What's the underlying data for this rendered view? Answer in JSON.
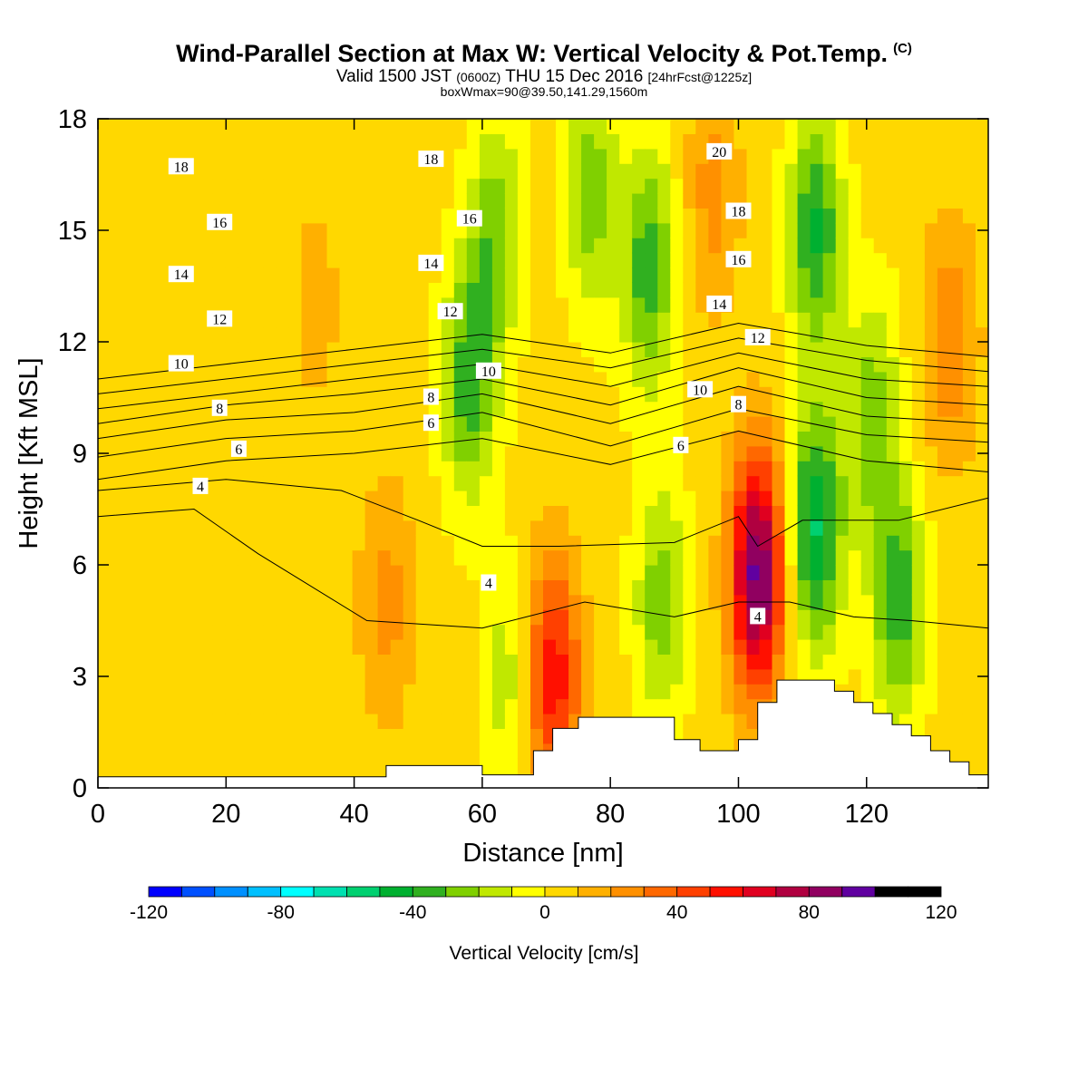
{
  "header": {
    "title": "Wind-Parallel Section at Max W: Vertical Velocity & Pot.Temp.",
    "copyright": "(C)",
    "valid_prefix": "Valid 1500 JST",
    "valid_utc": "(0600Z)",
    "valid_date": "THU 15 Dec 2016",
    "forecast": "[24hrFcst@1225z]",
    "subtitle": "boxWmax=90@39.50,141.29,1560m"
  },
  "chart_data": {
    "type": "heatmap",
    "xlabel": "Distance [nm]",
    "ylabel": "Height [Kft MSL]",
    "xlim": [
      0,
      139
    ],
    "ylim": [
      0,
      18
    ],
    "x_ticks": [
      0,
      20,
      40,
      60,
      80,
      100,
      120
    ],
    "y_ticks": [
      0,
      3,
      6,
      9,
      12,
      15,
      18
    ],
    "colorbar": {
      "label": "Vertical Velocity [cm/s]",
      "min": -120,
      "max": 120,
      "step": 10,
      "tick_values": [
        -120,
        -80,
        -40,
        0,
        40,
        80,
        120
      ],
      "colors": [
        "#0000ff",
        "#0050ff",
        "#0090ff",
        "#00c0ff",
        "#00ffff",
        "#00e0b0",
        "#00d070",
        "#00b030",
        "#30b020",
        "#80d000",
        "#c0e800",
        "#ffff00",
        "#ffd800",
        "#ffb000",
        "#ff9000",
        "#ff6800",
        "#ff4000",
        "#ff1000",
        "#e00020",
        "#b00040",
        "#900060",
        "#6000a0"
      ]
    },
    "terrain": [
      [
        0,
        0.3
      ],
      [
        45,
        0.3
      ],
      [
        45,
        0.6
      ],
      [
        60,
        0.6
      ],
      [
        60,
        0.35
      ],
      [
        68,
        0.35
      ],
      [
        68,
        1.0
      ],
      [
        71,
        1.0
      ],
      [
        71,
        1.6
      ],
      [
        75,
        1.6
      ],
      [
        75,
        1.9
      ],
      [
        90,
        1.9
      ],
      [
        90,
        1.3
      ],
      [
        94,
        1.3
      ],
      [
        94,
        1.0
      ],
      [
        100,
        1.0
      ],
      [
        100,
        1.3
      ],
      [
        103,
        1.3
      ],
      [
        103,
        2.3
      ],
      [
        106,
        2.3
      ],
      [
        106,
        2.9
      ],
      [
        115,
        2.9
      ],
      [
        115,
        2.6
      ],
      [
        118,
        2.6
      ],
      [
        118,
        2.3
      ],
      [
        121,
        2.3
      ],
      [
        121,
        2.0
      ],
      [
        124,
        2.0
      ],
      [
        124,
        1.7
      ],
      [
        127,
        1.7
      ],
      [
        127,
        1.4
      ],
      [
        130,
        1.4
      ],
      [
        130,
        1.0
      ],
      [
        133,
        1.0
      ],
      [
        133,
        0.7
      ],
      [
        136,
        0.7
      ],
      [
        136,
        0.35
      ],
      [
        139,
        0.35
      ]
    ],
    "velocity_features": [
      {
        "x": 34,
        "z": 13,
        "w": 10
      },
      {
        "x": 45,
        "z": 5,
        "w": 20
      },
      {
        "x": 58,
        "z": 11,
        "w": -40
      },
      {
        "x": 62,
        "z": 15,
        "w": -30
      },
      {
        "x": 64,
        "z": 3,
        "w": -20
      },
      {
        "x": 71,
        "z": 3,
        "w": 55
      },
      {
        "x": 77,
        "z": 16,
        "w": -30
      },
      {
        "x": 86,
        "z": 14,
        "w": -40
      },
      {
        "x": 88,
        "z": 5,
        "w": -30
      },
      {
        "x": 96,
        "z": 16,
        "w": 20
      },
      {
        "x": 103,
        "z": 5.8,
        "w": 90
      },
      {
        "x": 112,
        "z": 7,
        "w": -55
      },
      {
        "x": 112,
        "z": 15,
        "w": -45
      },
      {
        "x": 121,
        "z": 10,
        "w": -30
      },
      {
        "x": 125,
        "z": 5,
        "w": -40
      },
      {
        "x": 133,
        "z": 12,
        "w": 25
      }
    ],
    "isentropes": [
      {
        "theta": 4,
        "points": [
          [
            0,
            7.3
          ],
          [
            15,
            7.5
          ],
          [
            25,
            6.3
          ],
          [
            42,
            4.5
          ],
          [
            60,
            4.3
          ],
          [
            76,
            5.0
          ],
          [
            90,
            4.6
          ],
          [
            100,
            5.0
          ],
          [
            108,
            5.0
          ],
          [
            118,
            4.6
          ],
          [
            127,
            4.5
          ],
          [
            139,
            4.3
          ]
        ]
      },
      {
        "theta": 6,
        "points": [
          [
            0,
            8.0
          ],
          [
            20,
            8.3
          ],
          [
            38,
            8.0
          ],
          [
            50,
            7.2
          ],
          [
            60,
            6.5
          ],
          [
            72,
            6.5
          ],
          [
            90,
            6.6
          ],
          [
            100,
            7.3
          ],
          [
            103,
            6.5
          ],
          [
            110,
            7.2
          ],
          [
            125,
            7.2
          ],
          [
            139,
            7.8
          ]
        ]
      },
      {
        "theta": 8,
        "points": [
          [
            0,
            8.3
          ],
          [
            20,
            8.8
          ],
          [
            40,
            9.0
          ],
          [
            60,
            9.4
          ],
          [
            80,
            8.7
          ],
          [
            100,
            9.6
          ],
          [
            120,
            8.8
          ],
          [
            139,
            8.5
          ]
        ]
      },
      {
        "theta": 10,
        "points": [
          [
            0,
            8.9
          ],
          [
            20,
            9.4
          ],
          [
            40,
            9.6
          ],
          [
            60,
            10.1
          ],
          [
            80,
            9.2
          ],
          [
            100,
            10.2
          ],
          [
            120,
            9.5
          ],
          [
            139,
            9.3
          ]
        ]
      },
      {
        "theta": 12,
        "points": [
          [
            0,
            9.4
          ],
          [
            20,
            9.9
          ],
          [
            40,
            10.1
          ],
          [
            60,
            10.6
          ],
          [
            80,
            9.8
          ],
          [
            100,
            10.8
          ],
          [
            120,
            10.0
          ],
          [
            139,
            9.8
          ]
        ]
      },
      {
        "theta": 14,
        "points": [
          [
            0,
            9.8
          ],
          [
            20,
            10.3
          ],
          [
            40,
            10.6
          ],
          [
            60,
            11.0
          ],
          [
            80,
            10.3
          ],
          [
            100,
            11.3
          ],
          [
            120,
            10.5
          ],
          [
            139,
            10.3
          ]
        ]
      },
      {
        "theta": 16,
        "points": [
          [
            0,
            10.2
          ],
          [
            20,
            10.6
          ],
          [
            40,
            11.0
          ],
          [
            60,
            11.4
          ],
          [
            80,
            10.8
          ],
          [
            100,
            11.7
          ],
          [
            120,
            11.0
          ],
          [
            139,
            10.8
          ]
        ]
      },
      {
        "theta": 18,
        "points": [
          [
            0,
            10.6
          ],
          [
            20,
            11.0
          ],
          [
            40,
            11.4
          ],
          [
            60,
            11.8
          ],
          [
            80,
            11.3
          ],
          [
            100,
            12.1
          ],
          [
            120,
            11.5
          ],
          [
            139,
            11.2
          ]
        ]
      },
      {
        "theta": 20,
        "points": [
          [
            0,
            11.0
          ],
          [
            20,
            11.4
          ],
          [
            40,
            11.8
          ],
          [
            60,
            12.2
          ],
          [
            80,
            11.7
          ],
          [
            100,
            12.5
          ],
          [
            120,
            11.9
          ],
          [
            139,
            11.6
          ]
        ]
      }
    ],
    "contour_labels": [
      {
        "text": "18",
        "x": 13,
        "z": 16.7
      },
      {
        "text": "18",
        "x": 52,
        "z": 16.9
      },
      {
        "text": "20",
        "x": 97,
        "z": 17.1
      },
      {
        "text": "16",
        "x": 19,
        "z": 15.2
      },
      {
        "text": "16",
        "x": 58,
        "z": 15.3
      },
      {
        "text": "18",
        "x": 100,
        "z": 15.5
      },
      {
        "text": "14",
        "x": 13,
        "z": 13.8
      },
      {
        "text": "14",
        "x": 52,
        "z": 14.1
      },
      {
        "text": "16",
        "x": 100,
        "z": 14.2
      },
      {
        "text": "12",
        "x": 19,
        "z": 12.6
      },
      {
        "text": "12",
        "x": 55,
        "z": 12.8
      },
      {
        "text": "14",
        "x": 97,
        "z": 13.0
      },
      {
        "text": "10",
        "x": 13,
        "z": 11.4
      },
      {
        "text": "10",
        "x": 61,
        "z": 11.2
      },
      {
        "text": "12",
        "x": 103,
        "z": 12.1
      },
      {
        "text": "8",
        "x": 52,
        "z": 10.5
      },
      {
        "text": "10",
        "x": 94,
        "z": 10.7
      },
      {
        "text": "8",
        "x": 19,
        "z": 10.2
      },
      {
        "text": "8",
        "x": 100,
        "z": 10.3
      },
      {
        "text": "6",
        "x": 52,
        "z": 9.8
      },
      {
        "text": "6",
        "x": 22,
        "z": 9.1
      },
      {
        "text": "6",
        "x": 91,
        "z": 9.2
      },
      {
        "text": "4",
        "x": 16,
        "z": 8.1
      },
      {
        "text": "4",
        "x": 61,
        "z": 5.5
      },
      {
        "text": "4",
        "x": 103,
        "z": 4.6
      }
    ]
  }
}
